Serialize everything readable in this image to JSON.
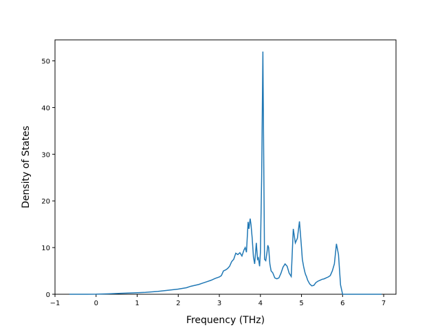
{
  "chart_data": {
    "type": "line",
    "title": "",
    "xlabel": "Frequency (THz)",
    "ylabel": "Density of States",
    "xlim": [
      -1.0,
      7.3
    ],
    "ylim": [
      0,
      54.5
    ],
    "xticks": [
      -1,
      0,
      1,
      2,
      3,
      4,
      5,
      6,
      7
    ],
    "yticks": [
      0,
      10,
      20,
      30,
      40,
      50
    ],
    "grid": false,
    "legend": "none",
    "line_color": "#1f77b4",
    "series": [
      {
        "x": [
          -0.65,
          -0.3,
          0.0,
          0.3,
          0.6,
          0.9,
          1.2,
          1.5,
          1.8,
          2.0,
          2.2,
          2.3,
          2.4,
          2.5,
          2.6,
          2.7,
          2.8,
          2.9,
          3.0,
          3.05,
          3.1,
          3.15,
          3.2,
          3.25,
          3.3,
          3.35,
          3.4,
          3.45,
          3.5,
          3.55,
          3.6,
          3.63,
          3.66,
          3.7,
          3.72,
          3.75,
          3.77,
          3.8,
          3.83,
          3.86,
          3.9,
          3.93,
          3.95,
          3.98,
          4.0,
          4.03,
          4.06,
          4.1,
          4.13,
          4.16,
          4.18,
          4.2,
          4.23,
          4.26,
          4.3,
          4.35,
          4.4,
          4.45,
          4.5,
          4.55,
          4.6,
          4.65,
          4.7,
          4.75,
          4.8,
          4.85,
          4.9,
          4.95,
          5.0,
          5.02,
          5.05,
          5.08,
          5.1,
          5.12,
          5.15,
          5.2,
          5.25,
          5.3,
          5.35,
          5.4,
          5.45,
          5.5,
          5.55,
          5.6,
          5.65,
          5.7,
          5.75,
          5.8,
          5.85,
          5.9,
          5.95,
          6.0,
          6.05,
          6.1,
          6.15,
          6.2,
          6.23,
          6.25,
          6.28,
          6.3,
          6.35,
          6.5,
          6.7,
          6.95
        ],
        "y": [
          0,
          0,
          0.02,
          0.1,
          0.2,
          0.3,
          0.4,
          0.6,
          0.9,
          1.1,
          1.4,
          1.7,
          1.9,
          2.1,
          2.4,
          2.7,
          3.0,
          3.4,
          3.7,
          4.0,
          5.0,
          5.2,
          5.5,
          6.0,
          7.0,
          7.5,
          8.8,
          8.5,
          8.9,
          8.2,
          9.5,
          10.0,
          9.0,
          15.5,
          14.0,
          16.2,
          15.0,
          12.0,
          8.0,
          6.5,
          11.0,
          7.5,
          7.8,
          6.0,
          9.0,
          25.0,
          52.0,
          7.5,
          7.2,
          9.0,
          10.5,
          10.0,
          6.5,
          5.0,
          4.6,
          3.5,
          3.3,
          3.5,
          4.5,
          5.8,
          6.5,
          6.0,
          4.5,
          3.8,
          14.0,
          11.0,
          12.0,
          15.6,
          10.0,
          7.5,
          6.0,
          4.8,
          4.2,
          3.8,
          3.0,
          2.2,
          1.8,
          1.9,
          2.5,
          2.8,
          3.0,
          3.2,
          3.3,
          3.5,
          3.7,
          4.0,
          5.0,
          6.5,
          10.8,
          8.5,
          2.0,
          0.0,
          0.0,
          0.0,
          0.0,
          0.0,
          0.0,
          0.0,
          0.0,
          0.0,
          0.0,
          0.0,
          0.0,
          0.0
        ]
      }
    ]
  }
}
